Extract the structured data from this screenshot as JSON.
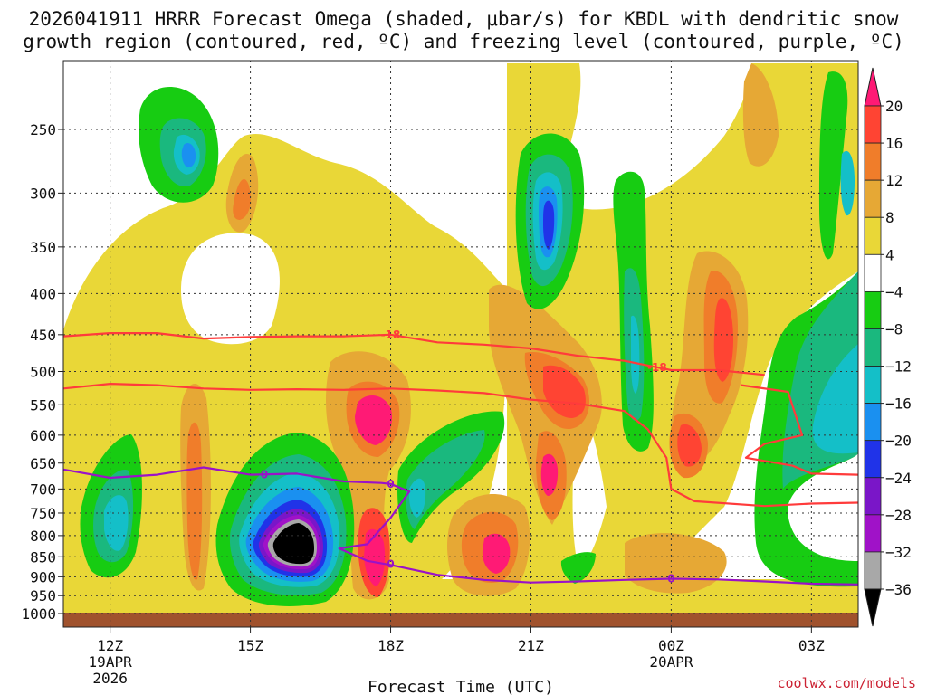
{
  "chart_data": {
    "type": "heatmap",
    "title_lines": [
      "2026041911 HRRR Forecast Omega (shaded, μbar/s) for KBDL with dendritic snow",
      "growth region (contoured, red, ºC) and freezing level (contoured, purple, ºC)"
    ],
    "xlabel": "Forecast Time (UTC)",
    "credit": "coolwx.com/models",
    "x_ticks": [
      {
        "label": "12Z",
        "sub": [
          "19APR",
          "2026"
        ],
        "hour": 12
      },
      {
        "label": "15Z",
        "sub": [],
        "hour": 15
      },
      {
        "label": "18Z",
        "sub": [],
        "hour": 18
      },
      {
        "label": "21Z",
        "sub": [],
        "hour": 21
      },
      {
        "label": "00Z",
        "sub": [
          "20APR"
        ],
        "hour": 24
      },
      {
        "label": "03Z",
        "sub": [],
        "hour": 27
      }
    ],
    "xlim_hours": [
      11,
      28
    ],
    "y_ticks": [
      250,
      300,
      350,
      400,
      450,
      500,
      550,
      600,
      650,
      700,
      750,
      800,
      850,
      900,
      950,
      1000
    ],
    "ylim_hpa": [
      200,
      1020
    ],
    "y_scale": "log-pressure",
    "colorbar": {
      "labels": [
        "20",
        "16",
        "12",
        "8",
        "4",
        "−4",
        "−8",
        "−12",
        "−16",
        "−20",
        "−24",
        "−28",
        "−32",
        "−36"
      ],
      "colors": [
        "#ff1a75",
        "#ff4433",
        "#f07d2a",
        "#e6a835",
        "#e9d737",
        "#ffffff",
        "#17cc12",
        "#1ab87e",
        "#14bfc8",
        "#1a90f0",
        "#2033e8",
        "#7a16c8",
        "#a012c8",
        "#a8a8a8",
        "#000000"
      ]
    },
    "contours": [
      {
        "label": "-18",
        "color": "#ff3b3b",
        "pts": [
          [
            11,
            452
          ],
          [
            12,
            448
          ],
          [
            13,
            448
          ],
          [
            14,
            455
          ],
          [
            15,
            453
          ],
          [
            16,
            452
          ],
          [
            17,
            452
          ],
          [
            18,
            450
          ],
          [
            19,
            460
          ],
          [
            20,
            463
          ],
          [
            21,
            468
          ],
          [
            22,
            478
          ],
          [
            23,
            485
          ],
          [
            24,
            498
          ],
          [
            25,
            498
          ],
          [
            26,
            505
          ]
        ]
      },
      {
        "label": "-18",
        "color": "#ff3b3b",
        "pts": [
          [
            11,
            525
          ],
          [
            12,
            518
          ],
          [
            13,
            520
          ],
          [
            14,
            525
          ],
          [
            15,
            527
          ],
          [
            16,
            526
          ],
          [
            17,
            527
          ],
          [
            18,
            525
          ],
          [
            19,
            528
          ],
          [
            20,
            532
          ],
          [
            21,
            542
          ],
          [
            22,
            548
          ],
          [
            23,
            560
          ],
          [
            23.5,
            590
          ],
          [
            23.9,
            640
          ],
          [
            24,
            700
          ],
          [
            24.5,
            725
          ],
          [
            26,
            735
          ],
          [
            27,
            730
          ],
          [
            28,
            728
          ]
        ]
      },
      {
        "label": "-18",
        "color": "#ff3b3b",
        "pts": [
          [
            25.5,
            520
          ],
          [
            26.5,
            530
          ],
          [
            26.8,
            600
          ],
          [
            26,
            615
          ],
          [
            25.6,
            640
          ],
          [
            26.6,
            655
          ],
          [
            27,
            670
          ],
          [
            28,
            672
          ]
        ]
      },
      {
        "label": "0",
        "color": "#9a12c8",
        "pts": [
          [
            11,
            662
          ],
          [
            12,
            678
          ],
          [
            13,
            672
          ],
          [
            14,
            658
          ],
          [
            15,
            672
          ],
          [
            16,
            670
          ],
          [
            17,
            685
          ],
          [
            17.8,
            688
          ],
          [
            18,
            690
          ],
          [
            18.4,
            705
          ],
          [
            18,
            760
          ],
          [
            17.5,
            820
          ],
          [
            16.9,
            830
          ],
          [
            17.5,
            860
          ],
          [
            18,
            870
          ],
          [
            19,
            895
          ],
          [
            20,
            908
          ],
          [
            21,
            915
          ],
          [
            22,
            912
          ],
          [
            23,
            908
          ],
          [
            24,
            905
          ],
          [
            25,
            907
          ],
          [
            26,
            912
          ],
          [
            27,
            918
          ],
          [
            28,
            920
          ]
        ]
      }
    ]
  }
}
